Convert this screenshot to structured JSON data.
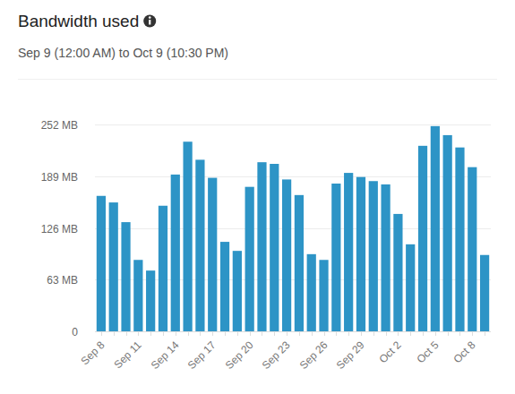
{
  "chart_data": {
    "type": "bar",
    "title": "Bandwidth used",
    "subtitle": "Sep 9 (12:00 AM) to Oct 9 (10:30 PM)",
    "categories": [
      "Sep 8",
      null,
      null,
      "Sep 11",
      null,
      null,
      "Sep 14",
      null,
      null,
      "Sep 17",
      null,
      null,
      "Sep 20",
      null,
      null,
      "Sep 23",
      null,
      null,
      "Sep 26",
      null,
      null,
      "Sep 29",
      null,
      null,
      "Oct 2",
      null,
      null,
      "Oct 5",
      null,
      null,
      "Oct 8",
      null
    ],
    "values": [
      165,
      157,
      133,
      87,
      74,
      153,
      191,
      231,
      209,
      187,
      109,
      98,
      176,
      206,
      204,
      185,
      166,
      94,
      87,
      180,
      193,
      188,
      183,
      179,
      143,
      106,
      226,
      250,
      239,
      224,
      200,
      93
    ],
    "color": "#2d94c6",
    "ylim": [
      0,
      252
    ],
    "yticks": [
      0,
      {
        "value": 63,
        "label": "63 MB"
      },
      {
        "value": 126,
        "label": "126 MB"
      },
      {
        "value": 189,
        "label": "189 MB"
      },
      {
        "value": 252,
        "label": "252 MB"
      }
    ],
    "grid": true
  }
}
